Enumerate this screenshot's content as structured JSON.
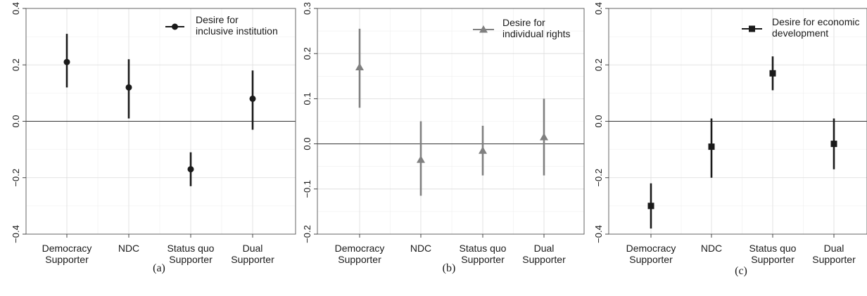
{
  "chart_data": [
    {
      "type": "scatter",
      "caption": "(a)",
      "categories": [
        "Democracy\nSupporter",
        "NDC",
        "Status quo\nSupporter",
        "Dual\nSupporter"
      ],
      "ylim": [
        -0.4,
        0.4
      ],
      "yticks": [
        -0.4,
        -0.2,
        0.0,
        0.2,
        0.4
      ],
      "ytick_labels": [
        "−0.4",
        "−0.2",
        "0.0",
        "0.2",
        "0.4"
      ],
      "grid": true,
      "zero_line": true,
      "legend_position": "top-right",
      "series": [
        {
          "name": "Desire for\ninclusive institution",
          "marker": "circle",
          "color": "#1a1a1a",
          "values": [
            0.21,
            0.12,
            -0.17,
            0.08
          ],
          "lower": [
            0.12,
            0.01,
            -0.23,
            -0.03
          ],
          "upper": [
            0.31,
            0.22,
            -0.11,
            0.18
          ]
        }
      ]
    },
    {
      "type": "scatter",
      "caption": "(b)",
      "categories": [
        "Democracy\nSupporter",
        "NDC",
        "Status quo\nSupporter",
        "Dual\nSupporter"
      ],
      "ylim": [
        -0.2,
        0.3
      ],
      "yticks": [
        -0.2,
        -0.1,
        0.0,
        0.1,
        0.2,
        0.3
      ],
      "ytick_labels": [
        "−0.2",
        "−0.1",
        "0.0",
        "0.1",
        "0.2",
        "0.3"
      ],
      "grid": true,
      "zero_line": true,
      "legend_position": "top-right",
      "series": [
        {
          "name": "Desire for\nindividual rights",
          "marker": "triangle",
          "color": "#808080",
          "values": [
            0.17,
            -0.035,
            -0.015,
            0.015
          ],
          "lower": [
            0.08,
            -0.115,
            -0.07,
            -0.07
          ],
          "upper": [
            0.255,
            0.05,
            0.04,
            0.1
          ]
        }
      ]
    },
    {
      "type": "scatter",
      "caption": "(c)",
      "categories": [
        "Democracy\nSupporter",
        "NDC",
        "Status quo\nSupporter",
        "Dual\nSupporter"
      ],
      "ylim": [
        -0.4,
        0.4
      ],
      "yticks": [
        -0.4,
        -0.2,
        0.0,
        0.2,
        0.4
      ],
      "ytick_labels": [
        "−0.4",
        "−0.2",
        "0.0",
        "0.2",
        "0.4"
      ],
      "grid": true,
      "zero_line": true,
      "legend_position": "top-right",
      "series": [
        {
          "name": "Desire for economic\ndevelopment",
          "marker": "square",
          "color": "#1a1a1a",
          "values": [
            -0.3,
            -0.09,
            0.17,
            -0.08
          ],
          "lower": [
            -0.38,
            -0.2,
            0.11,
            -0.17
          ],
          "upper": [
            -0.22,
            0.01,
            0.23,
            0.01
          ]
        }
      ]
    }
  ]
}
